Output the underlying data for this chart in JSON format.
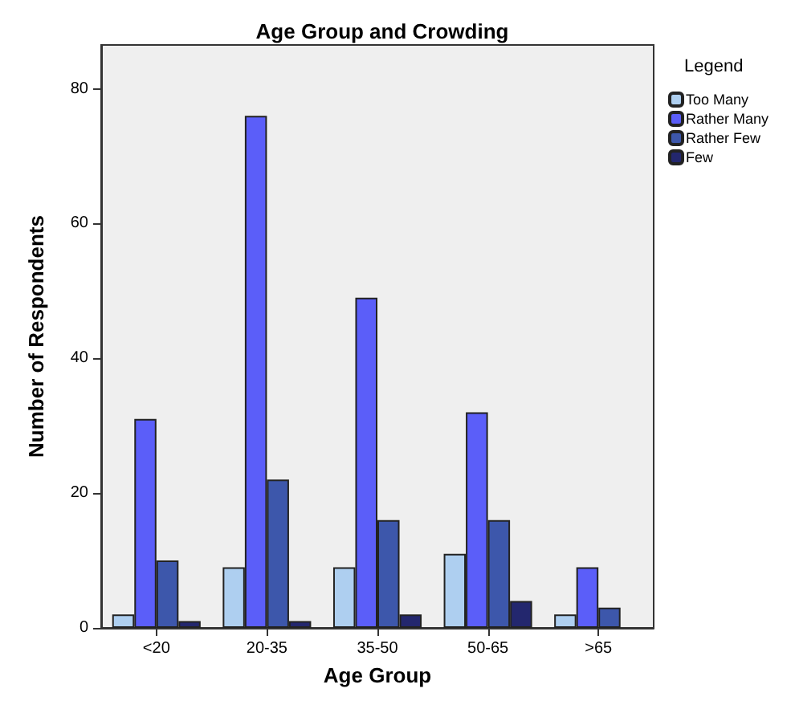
{
  "chart_data": {
    "type": "bar",
    "title": "Age Group and Crowding",
    "xlabel": "Age Group",
    "ylabel": "Number of Respondents",
    "legend_title": "Legend",
    "categories": [
      "<20",
      "20-35",
      "35-50",
      "50-65",
      ">65"
    ],
    "series": [
      {
        "name": "Too Many",
        "color": "#aecff0",
        "values": [
          2,
          9,
          9,
          11,
          2
        ]
      },
      {
        "name": "Rather Many",
        "color": "#5b5ef9",
        "values": [
          31,
          76,
          49,
          32,
          9
        ]
      },
      {
        "name": "Rather Few",
        "color": "#3d57ab",
        "values": [
          10,
          22,
          16,
          16,
          3
        ]
      },
      {
        "name": "Few",
        "color": "#23276e",
        "values": [
          1,
          1,
          2,
          4,
          null
        ]
      }
    ],
    "ylim": [
      0,
      86.5
    ],
    "yticks": [
      0,
      20,
      40,
      60,
      80
    ],
    "grid": false,
    "legend": "right"
  }
}
